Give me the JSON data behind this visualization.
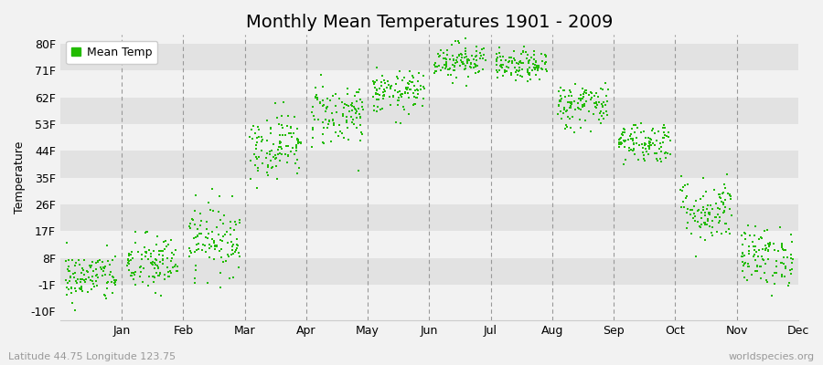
{
  "title": "Monthly Mean Temperatures 1901 - 2009",
  "ylabel": "Temperature",
  "xlabel_bottom_left": "Latitude 44.75 Longitude 123.75",
  "xlabel_bottom_right": "worldspecies.org",
  "ytick_labels": [
    "-10F",
    "-1F",
    "8F",
    "17F",
    "26F",
    "35F",
    "44F",
    "53F",
    "62F",
    "71F",
    "80F"
  ],
  "ytick_values": [
    -10,
    -1,
    8,
    17,
    26,
    35,
    44,
    53,
    62,
    71,
    80
  ],
  "ylim": [
    -13,
    83
  ],
  "months": [
    "Jan",
    "Feb",
    "Mar",
    "Apr",
    "May",
    "Jun",
    "Jul",
    "Aug",
    "Sep",
    "Oct",
    "Nov",
    "Dec"
  ],
  "dot_color": "#22bb00",
  "background_color": "#f2f2f2",
  "band_color_light": "#f2f2f2",
  "band_color_dark": "#e2e2e2",
  "n_years": 109,
  "month_temps": {
    "Jan": {
      "mean": 1.5,
      "std": 4.2,
      "spread": 0.42
    },
    "Feb": {
      "mean": 6.0,
      "std": 5.0,
      "spread": 0.42
    },
    "Mar": {
      "mean": 14.5,
      "std": 6.0,
      "spread": 0.42
    },
    "Apr": {
      "mean": 46.0,
      "std": 5.5,
      "spread": 0.42
    },
    "May": {
      "mean": 56.5,
      "std": 5.5,
      "spread": 0.42
    },
    "Jun": {
      "mean": 63.5,
      "std": 3.5,
      "spread": 0.42
    },
    "Jul": {
      "mean": 74.5,
      "std": 3.0,
      "spread": 0.42
    },
    "Aug": {
      "mean": 72.5,
      "std": 2.5,
      "spread": 0.42
    },
    "Sep": {
      "mean": 59.5,
      "std": 4.0,
      "spread": 0.42
    },
    "Oct": {
      "mean": 47.0,
      "std": 3.5,
      "spread": 0.42
    },
    "Nov": {
      "mean": 24.0,
      "std": 5.5,
      "spread": 0.42
    },
    "Dec": {
      "mean": 8.5,
      "std": 5.0,
      "spread": 0.42
    }
  },
  "title_fontsize": 14,
  "legend_fontsize": 9,
  "tick_fontsize": 9,
  "annotation_fontsize": 8
}
